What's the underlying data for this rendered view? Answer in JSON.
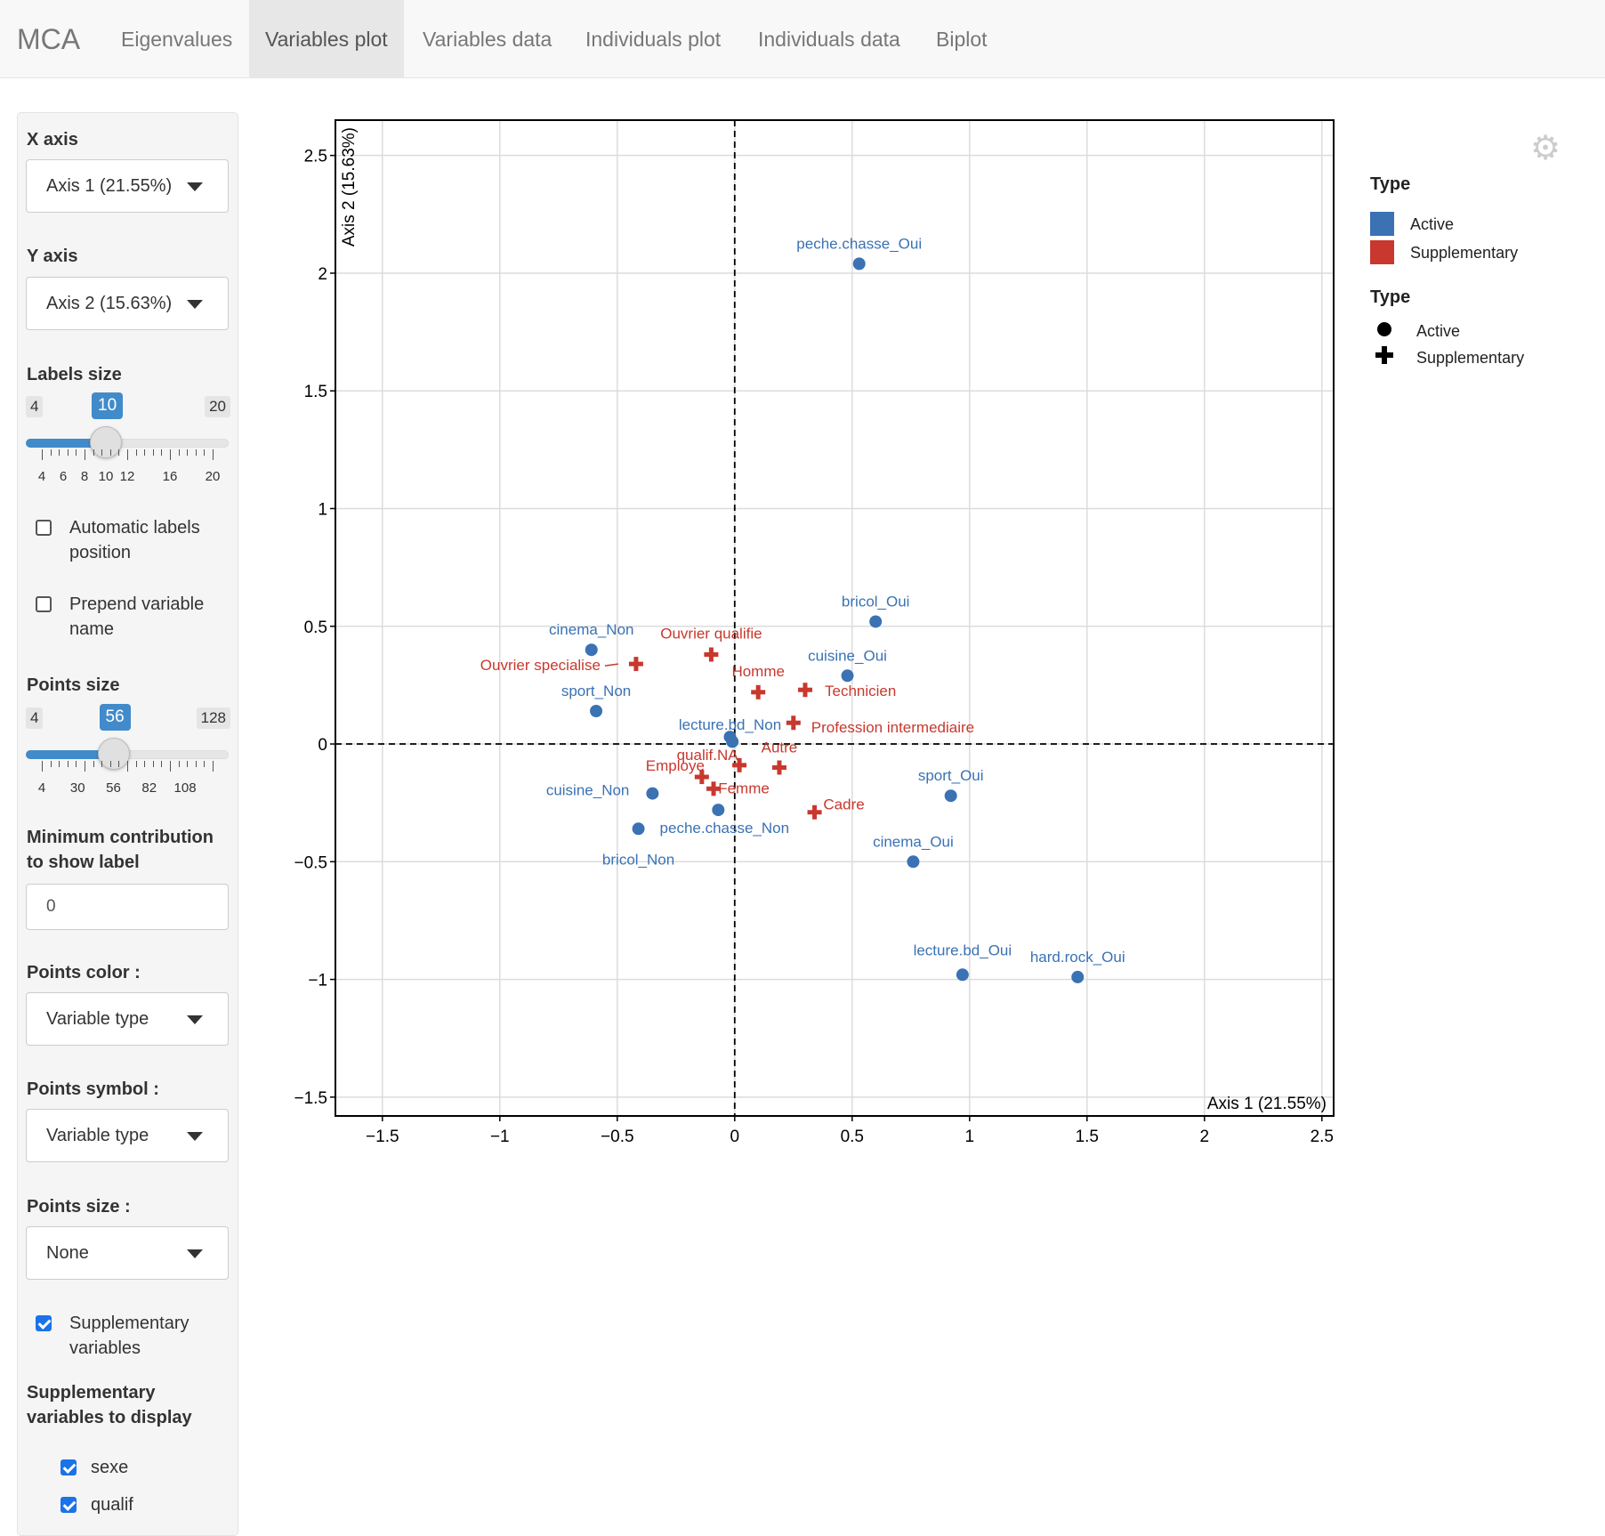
{
  "navbar": {
    "brand": "MCA",
    "tabs": [
      {
        "label": "Eigenvalues"
      },
      {
        "label": "Variables plot"
      },
      {
        "label": "Variables data"
      },
      {
        "label": "Individuals plot"
      },
      {
        "label": "Individuals data"
      },
      {
        "label": "Biplot"
      }
    ],
    "active_tab": "Variables plot"
  },
  "sidebar": {
    "x_axis": {
      "label": "X axis",
      "value": "Axis 1 (21.55%)"
    },
    "y_axis": {
      "label": "Y axis",
      "value": "Axis 2 (15.63%)"
    },
    "labels_size": {
      "label": "Labels size",
      "min": "4",
      "max": "20",
      "value": "10",
      "min_n": 4,
      "max_n": 20,
      "value_n": 10,
      "tick_labels": [
        "4",
        "6",
        "8",
        "10",
        "12",
        "16",
        "20"
      ],
      "tick_values": [
        4,
        6,
        8,
        10,
        12,
        16,
        20
      ]
    },
    "auto_labels": {
      "label": "Automatic labels position",
      "checked": false
    },
    "prepend_name": {
      "label": "Prepend variable name",
      "checked": false
    },
    "points_size": {
      "label": "Points size",
      "min": "4",
      "max": "128",
      "value": "56",
      "min_n": 4,
      "max_n": 128,
      "value_n": 56,
      "tick_labels": [
        "4",
        "30",
        "56",
        "82",
        "108"
      ],
      "tick_values": [
        4,
        30,
        56,
        82,
        108
      ]
    },
    "min_contrib": {
      "label": "Minimum contribution to show label",
      "value": "0"
    },
    "points_color": {
      "label": "Points color :",
      "value": "Variable type"
    },
    "points_symbol": {
      "label": "Points symbol :",
      "value": "Variable type"
    },
    "points_size_sel": {
      "label": "Points size :",
      "value": "None"
    },
    "supp_vars": {
      "label": "Supplementary variables",
      "checked": true
    },
    "supp_display": {
      "label": "Supplementary variables to display",
      "items": [
        {
          "label": "sexe",
          "checked": true
        },
        {
          "label": "qualif",
          "checked": true
        }
      ]
    }
  },
  "legend": {
    "color_title": "Type",
    "color_items": [
      {
        "label": "Active",
        "color": "#3a72b4"
      },
      {
        "label": "Supplementary",
        "color": "#c8382e"
      }
    ],
    "symbol_title": "Type",
    "symbol_items": [
      {
        "label": "Active",
        "symbol": "circle"
      },
      {
        "label": "Supplementary",
        "symbol": "cross"
      }
    ]
  },
  "chart_data": {
    "type": "scatter",
    "xlabel": "Axis 1 (21.55%)",
    "ylabel": "Axis 2 (15.63%)",
    "xlim": [
      -1.7,
      2.55
    ],
    "ylim": [
      -1.58,
      2.65
    ],
    "xticks": [
      -1.5,
      -1,
      -0.5,
      0,
      0.5,
      1,
      1.5,
      2,
      2.5
    ],
    "yticks": [
      -1.5,
      -1,
      -0.5,
      0,
      0.5,
      1,
      1.5,
      2,
      2.5
    ],
    "xtick_labels": [
      "−1.5",
      "−1",
      "−0.5",
      "0",
      "0.5",
      "1",
      "1.5",
      "2",
      "2.5"
    ],
    "ytick_labels": [
      "−1.5",
      "−1",
      "−0.5",
      "0",
      "0.5",
      "1",
      "1.5",
      "2",
      "2.5"
    ],
    "grid": true,
    "series": [
      {
        "name": "Active",
        "color": "#3a72b4",
        "symbol": "circle",
        "points": [
          {
            "label": "peche.chasse_Oui",
            "x": 0.53,
            "y": 2.04
          },
          {
            "label": "bricol_Oui",
            "x": 0.6,
            "y": 0.52
          },
          {
            "label": "cinema_Non",
            "x": -0.61,
            "y": 0.4
          },
          {
            "label": "cuisine_Oui",
            "x": 0.48,
            "y": 0.29
          },
          {
            "label": "sport_Non",
            "x": -0.59,
            "y": 0.14
          },
          {
            "label": "lecture.bd_Non",
            "x": -0.02,
            "y": 0.03
          },
          {
            "label": "",
            "x": -0.01,
            "y": 0.01
          },
          {
            "label": "sport_Oui",
            "x": 0.92,
            "y": -0.22
          },
          {
            "label": "cuisine_Non",
            "x": -0.35,
            "y": -0.21
          },
          {
            "label": "peche.chasse_Non",
            "x": -0.07,
            "y": -0.28
          },
          {
            "label": "bricol_Non",
            "x": -0.41,
            "y": -0.36
          },
          {
            "label": "cinema_Oui",
            "x": 0.76,
            "y": -0.5
          },
          {
            "label": "lecture.bd_Oui",
            "x": 0.97,
            "y": -0.98
          },
          {
            "label": "hard.rock_Oui",
            "x": 1.46,
            "y": -0.99
          }
        ]
      },
      {
        "name": "Supplementary",
        "color": "#c8382e",
        "symbol": "cross",
        "points": [
          {
            "label": "Ouvrier qualifie",
            "x": -0.1,
            "y": 0.38
          },
          {
            "label": "Ouvrier specialise",
            "x": -0.42,
            "y": 0.34
          },
          {
            "label": "Homme",
            "x": 0.1,
            "y": 0.22
          },
          {
            "label": "Technicien",
            "x": 0.3,
            "y": 0.23
          },
          {
            "label": "Profession intermediaire",
            "x": 0.25,
            "y": 0.09
          },
          {
            "label": "Autre",
            "x": 0.19,
            "y": -0.1
          },
          {
            "label": "qualif.NA",
            "x": 0.02,
            "y": -0.09
          },
          {
            "label": "Employe",
            "x": -0.14,
            "y": -0.14
          },
          {
            "label": "Femme",
            "x": -0.09,
            "y": -0.19
          },
          {
            "label": "Cadre",
            "x": 0.34,
            "y": -0.29
          }
        ]
      }
    ]
  }
}
